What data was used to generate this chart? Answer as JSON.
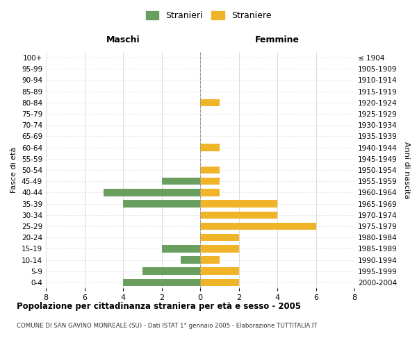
{
  "age_groups": [
    "0-4",
    "5-9",
    "10-14",
    "15-19",
    "20-24",
    "25-29",
    "30-34",
    "35-39",
    "40-44",
    "45-49",
    "50-54",
    "55-59",
    "60-64",
    "65-69",
    "70-74",
    "75-79",
    "80-84",
    "85-89",
    "90-94",
    "95-99",
    "100+"
  ],
  "birth_years": [
    "2000-2004",
    "1995-1999",
    "1990-1994",
    "1985-1989",
    "1980-1984",
    "1975-1979",
    "1970-1974",
    "1965-1969",
    "1960-1964",
    "1955-1959",
    "1950-1954",
    "1945-1949",
    "1940-1944",
    "1935-1939",
    "1930-1934",
    "1925-1929",
    "1920-1924",
    "1915-1919",
    "1910-1914",
    "1905-1909",
    "≤ 1904"
  ],
  "maschi": [
    4,
    3,
    1,
    2,
    0,
    0,
    0,
    4,
    5,
    2,
    0,
    0,
    0,
    0,
    0,
    0,
    0,
    0,
    0,
    0,
    0
  ],
  "femmine": [
    2,
    2,
    1,
    2,
    2,
    6,
    4,
    4,
    1,
    1,
    1,
    0,
    1,
    0,
    0,
    0,
    1,
    0,
    0,
    0,
    0
  ],
  "color_maschi": "#6a9e5f",
  "color_femmine": "#f0b429",
  "title_main": "Popolazione per cittadinanza straniera per età e sesso - 2005",
  "title_sub": "COMUNE DI SAN GAVINO MONREALE (SU) - Dati ISTAT 1° gennaio 2005 - Elaborazione TUTTITALIA.IT",
  "legend_maschi": "Stranieri",
  "legend_femmine": "Straniere",
  "label_maschi": "Maschi",
  "label_femmine": "Femmine",
  "ylabel_left": "Fasce di età",
  "ylabel_right": "Anni di nascita",
  "xlim": 8,
  "background_color": "#ffffff",
  "grid_color": "#cccccc"
}
